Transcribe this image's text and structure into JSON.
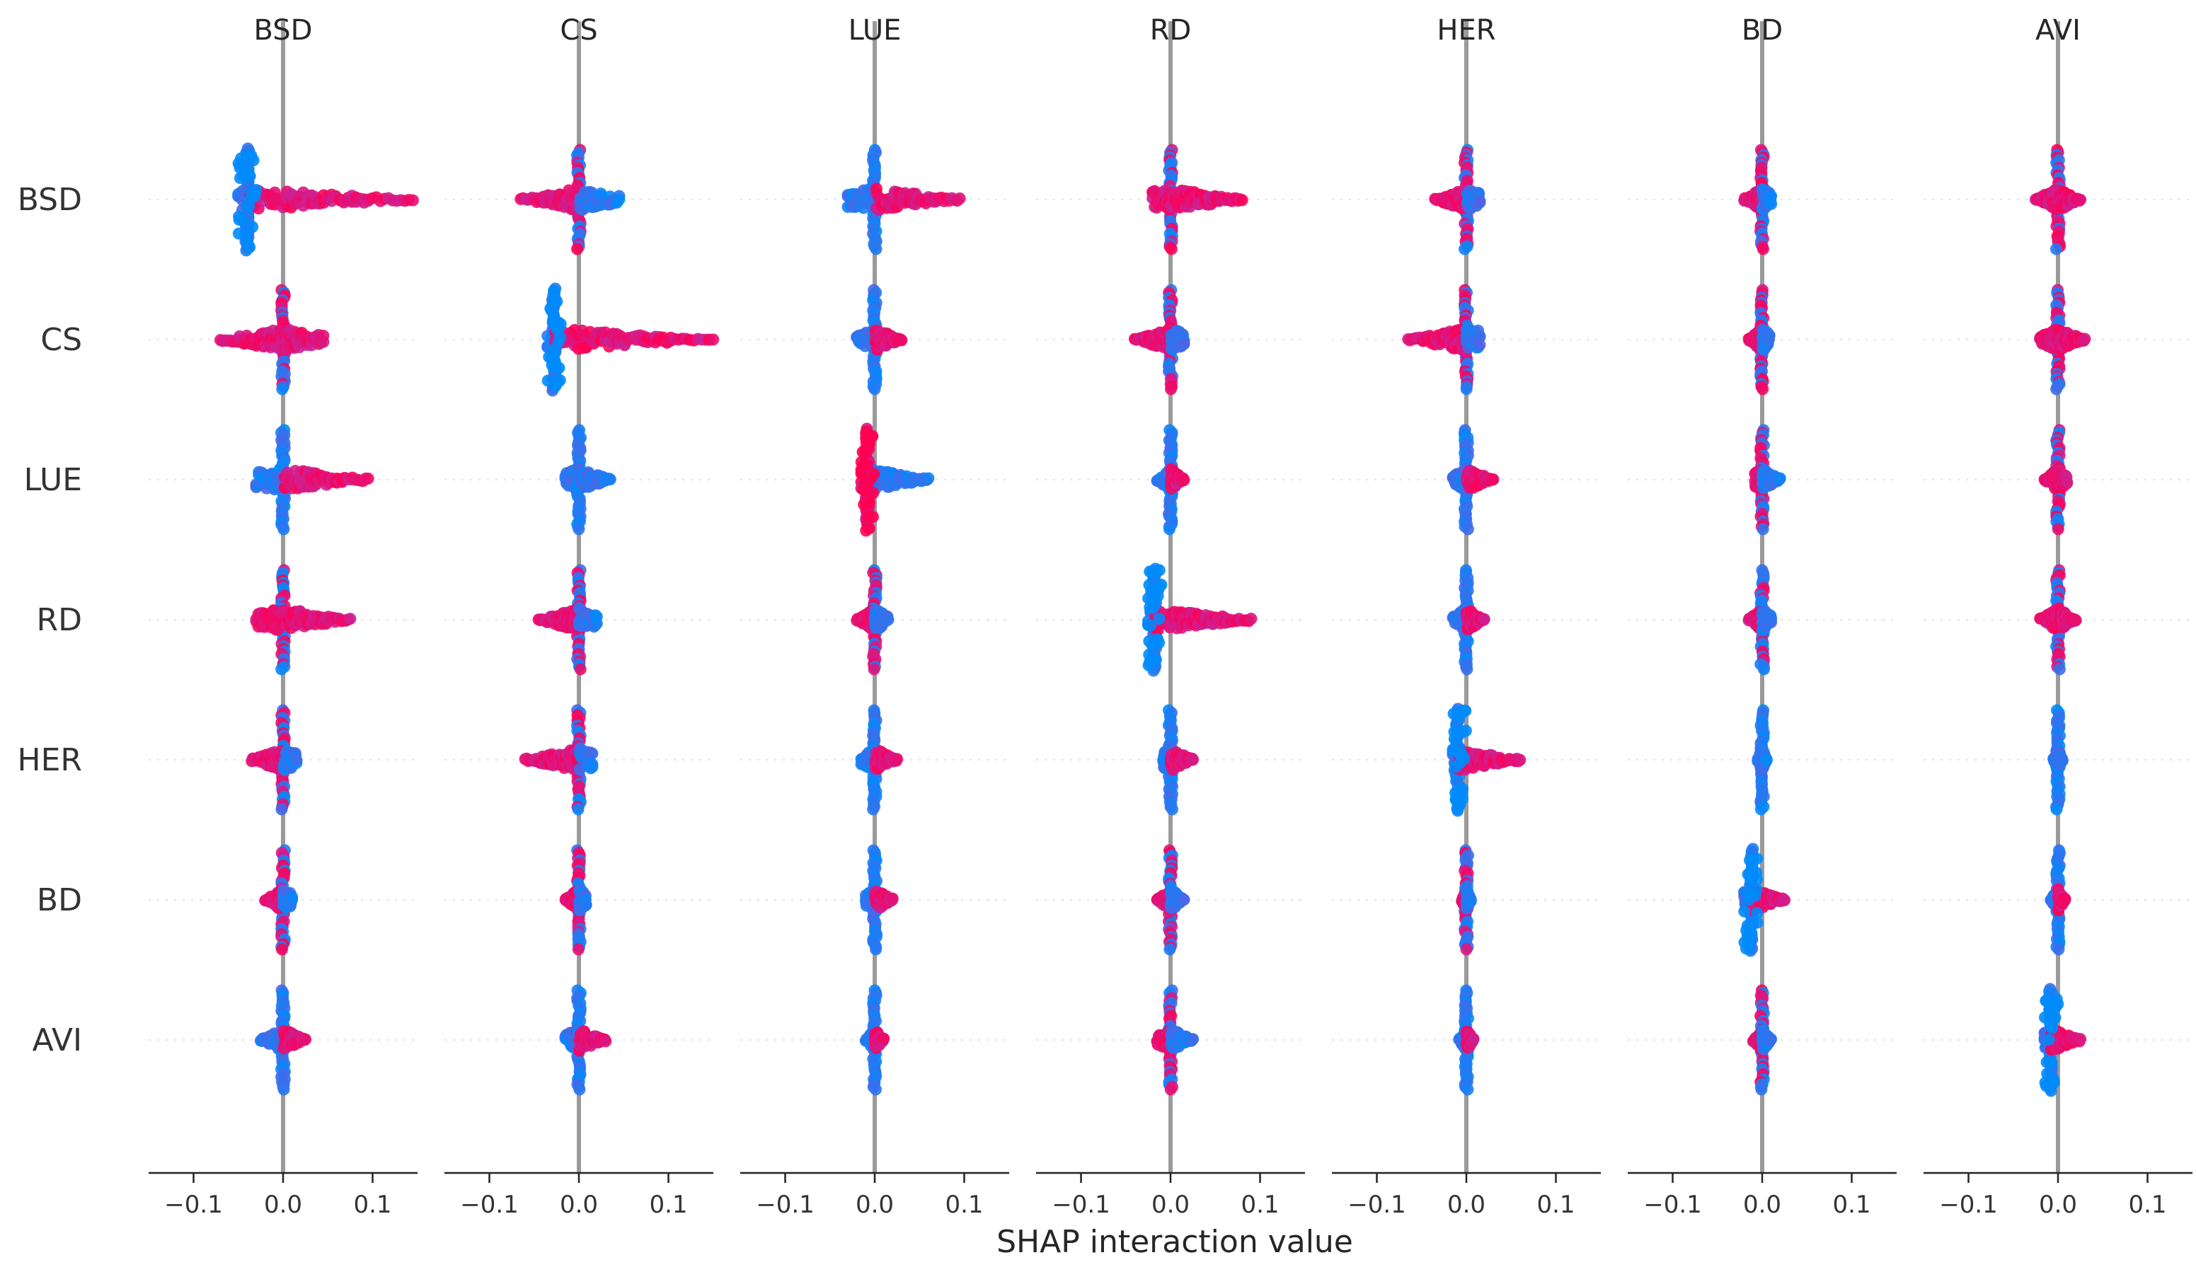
{
  "chart_data": {
    "type": "scatter",
    "subtype": "shap-interaction-beeswarm-grid",
    "features": [
      "BSD",
      "CS",
      "LUE",
      "RD",
      "HER",
      "BD",
      "AVI"
    ],
    "xlabel": "SHAP interaction value",
    "xlim": [
      -0.15,
      0.15
    ],
    "xticks": [
      -0.1,
      0.0,
      0.1
    ],
    "xtick_labels": [
      "−0.1",
      "0.0",
      "0.1"
    ],
    "color_low": "#008bfb",
    "color_high": "#ff0052",
    "cells": [
      {
        "row": "BSD",
        "col": "BSD",
        "min": -0.05,
        "max": 0.145,
        "neg_color": "low",
        "dense": [
          -0.05,
          -0.03
        ],
        "dense_x": -0.04,
        "pos_color": "high"
      },
      {
        "row": "BSD",
        "col": "CS",
        "min": -0.065,
        "max": 0.045,
        "neg_color": "high",
        "pos_color": "low"
      },
      {
        "row": "BSD",
        "col": "LUE",
        "min": -0.03,
        "max": 0.095,
        "neg_color": "low",
        "pos_color": "high"
      },
      {
        "row": "BSD",
        "col": "RD",
        "min": -0.02,
        "max": 0.08,
        "neg_color": "high",
        "pos_color": "high"
      },
      {
        "row": "BSD",
        "col": "HER",
        "min": -0.035,
        "max": 0.015,
        "neg_color": "high",
        "pos_color": "low"
      },
      {
        "row": "BSD",
        "col": "BD",
        "min": -0.02,
        "max": 0.01,
        "neg_color": "high",
        "pos_color": "low"
      },
      {
        "row": "BSD",
        "col": "AVI",
        "min": -0.025,
        "max": 0.025,
        "neg_color": "high",
        "pos_color": "high"
      },
      {
        "row": "CS",
        "col": "BSD",
        "min": -0.07,
        "max": 0.045,
        "neg_color": "high",
        "pos_color": "high"
      },
      {
        "row": "CS",
        "col": "CS",
        "min": -0.035,
        "max": 0.15,
        "neg_color": "low",
        "dense": [
          -0.035,
          -0.02
        ],
        "dense_x": -0.028,
        "pos_color": "high"
      },
      {
        "row": "CS",
        "col": "LUE",
        "min": -0.02,
        "max": 0.03,
        "neg_color": "low",
        "pos_color": "high"
      },
      {
        "row": "CS",
        "col": "RD",
        "min": -0.04,
        "max": 0.015,
        "neg_color": "high",
        "pos_color": "low"
      },
      {
        "row": "CS",
        "col": "HER",
        "min": -0.065,
        "max": 0.015,
        "neg_color": "high",
        "pos_color": "low"
      },
      {
        "row": "CS",
        "col": "BD",
        "min": -0.015,
        "max": 0.008,
        "neg_color": "high",
        "pos_color": "low"
      },
      {
        "row": "CS",
        "col": "AVI",
        "min": -0.02,
        "max": 0.03,
        "neg_color": "high",
        "pos_color": "high"
      },
      {
        "row": "LUE",
        "col": "BSD",
        "min": -0.03,
        "max": 0.095,
        "neg_color": "low",
        "pos_color": "high"
      },
      {
        "row": "LUE",
        "col": "CS",
        "min": -0.015,
        "max": 0.035,
        "neg_color": "low",
        "pos_color": "low"
      },
      {
        "row": "LUE",
        "col": "LUE",
        "min": -0.015,
        "max": 0.06,
        "neg_color": "high",
        "dense": [
          -0.015,
          0.0
        ],
        "dense_x": -0.008,
        "pos_color": "low"
      },
      {
        "row": "LUE",
        "col": "RD",
        "min": -0.015,
        "max": 0.015,
        "neg_color": "low",
        "pos_color": "high"
      },
      {
        "row": "LUE",
        "col": "HER",
        "min": -0.015,
        "max": 0.03,
        "neg_color": "low",
        "pos_color": "high"
      },
      {
        "row": "LUE",
        "col": "BD",
        "min": -0.008,
        "max": 0.02,
        "neg_color": "high",
        "pos_color": "low"
      },
      {
        "row": "LUE",
        "col": "AVI",
        "min": -0.015,
        "max": 0.01,
        "neg_color": "high",
        "pos_color": "high"
      },
      {
        "row": "RD",
        "col": "BSD",
        "min": -0.03,
        "max": 0.075,
        "neg_color": "high",
        "pos_color": "high"
      },
      {
        "row": "RD",
        "col": "CS",
        "min": -0.045,
        "max": 0.02,
        "neg_color": "high",
        "pos_color": "low"
      },
      {
        "row": "RD",
        "col": "LUE",
        "min": -0.02,
        "max": 0.015,
        "neg_color": "high",
        "pos_color": "low"
      },
      {
        "row": "RD",
        "col": "RD",
        "min": -0.025,
        "max": 0.09,
        "neg_color": "low",
        "dense": [
          -0.025,
          -0.01
        ],
        "dense_x": -0.018,
        "pos_color": "high"
      },
      {
        "row": "RD",
        "col": "HER",
        "min": -0.015,
        "max": 0.02,
        "neg_color": "low",
        "pos_color": "high"
      },
      {
        "row": "RD",
        "col": "BD",
        "min": -0.015,
        "max": 0.01,
        "neg_color": "high",
        "pos_color": "low"
      },
      {
        "row": "RD",
        "col": "AVI",
        "min": -0.02,
        "max": 0.02,
        "neg_color": "high",
        "pos_color": "high"
      },
      {
        "row": "HER",
        "col": "BSD",
        "min": -0.035,
        "max": 0.015,
        "neg_color": "high",
        "pos_color": "low"
      },
      {
        "row": "HER",
        "col": "CS",
        "min": -0.06,
        "max": 0.015,
        "neg_color": "high",
        "pos_color": "low"
      },
      {
        "row": "HER",
        "col": "LUE",
        "min": -0.015,
        "max": 0.025,
        "neg_color": "low",
        "pos_color": "high"
      },
      {
        "row": "HER",
        "col": "RD",
        "min": -0.008,
        "max": 0.025,
        "neg_color": "low",
        "pos_color": "high"
      },
      {
        "row": "HER",
        "col": "HER",
        "min": -0.015,
        "max": 0.06,
        "neg_color": "low",
        "dense": [
          -0.015,
          0.0
        ],
        "dense_x": -0.01,
        "pos_color": "high"
      },
      {
        "row": "HER",
        "col": "BD",
        "min": -0.005,
        "max": 0.005,
        "neg_color": "low",
        "pos_color": "low"
      },
      {
        "row": "HER",
        "col": "AVI",
        "min": -0.005,
        "max": 0.005,
        "neg_color": "low",
        "pos_color": "low"
      },
      {
        "row": "BD",
        "col": "BSD",
        "min": -0.02,
        "max": 0.01,
        "neg_color": "high",
        "pos_color": "low"
      },
      {
        "row": "BD",
        "col": "CS",
        "min": -0.015,
        "max": 0.008,
        "neg_color": "high",
        "pos_color": "low"
      },
      {
        "row": "BD",
        "col": "LUE",
        "min": -0.01,
        "max": 0.02,
        "neg_color": "low",
        "pos_color": "high"
      },
      {
        "row": "BD",
        "col": "RD",
        "min": -0.015,
        "max": 0.015,
        "neg_color": "high",
        "pos_color": "low"
      },
      {
        "row": "BD",
        "col": "HER",
        "min": -0.005,
        "max": 0.005,
        "neg_color": "high",
        "pos_color": "low"
      },
      {
        "row": "BD",
        "col": "BD",
        "min": -0.02,
        "max": 0.025,
        "neg_color": "low",
        "dense": [
          -0.02,
          -0.005
        ],
        "dense_x": -0.012,
        "pos_color": "high"
      },
      {
        "row": "BD",
        "col": "AVI",
        "min": -0.008,
        "max": 0.008,
        "neg_color": "low",
        "pos_color": "high"
      },
      {
        "row": "AVI",
        "col": "BSD",
        "min": -0.025,
        "max": 0.025,
        "neg_color": "low",
        "pos_color": "high"
      },
      {
        "row": "AVI",
        "col": "CS",
        "min": -0.015,
        "max": 0.03,
        "neg_color": "low",
        "pos_color": "high"
      },
      {
        "row": "AVI",
        "col": "LUE",
        "min": -0.01,
        "max": 0.01,
        "neg_color": "low",
        "pos_color": "high"
      },
      {
        "row": "AVI",
        "col": "RD",
        "min": -0.015,
        "max": 0.025,
        "neg_color": "high",
        "pos_color": "low"
      },
      {
        "row": "AVI",
        "col": "HER",
        "min": -0.008,
        "max": 0.008,
        "neg_color": "low",
        "pos_color": "high"
      },
      {
        "row": "AVI",
        "col": "BD",
        "min": -0.01,
        "max": 0.01,
        "neg_color": "high",
        "pos_color": "low"
      },
      {
        "row": "AVI",
        "col": "AVI",
        "min": -0.015,
        "max": 0.025,
        "neg_color": "low",
        "dense": [
          -0.015,
          0.0
        ],
        "dense_x": -0.008,
        "pos_color": "high"
      }
    ]
  }
}
